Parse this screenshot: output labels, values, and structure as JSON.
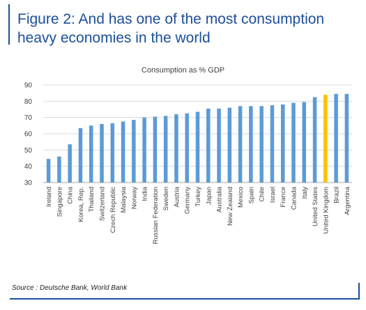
{
  "figure": {
    "title": "Figure 2: And has one of the most consumption heavy economies in the world",
    "source": "Source : Deutsche Bank, World Bank"
  },
  "colors": {
    "bar": "#5b9bd5",
    "highlight": "#ffc000",
    "frame": "#1a4f9c",
    "grid": "#d9d9d9"
  },
  "chart_data": {
    "type": "bar",
    "title": "Consumption as % GDP",
    "xlabel": "",
    "ylabel": "",
    "ylim": [
      30,
      90
    ],
    "yticks": [
      30,
      40,
      50,
      60,
      70,
      80,
      90
    ],
    "grid": true,
    "legend": "none",
    "highlight_category": "United Kingdom",
    "categories": [
      "Ireland",
      "Singapore",
      "China",
      "Korea, Rep.",
      "Thailand",
      "Switzerland",
      "Czech Republic",
      "Malaysia",
      "Norway",
      "India",
      "Russian Federation",
      "Sweden",
      "Austria",
      "Germany",
      "Turkey",
      "Japan",
      "Australia",
      "New Zealand",
      "Mexico",
      "Spain",
      "Chile",
      "Israel",
      "France",
      "Canada",
      "Italy",
      "United States",
      "United Kingdom",
      "Brazil",
      "Argentina"
    ],
    "values": [
      44.5,
      46,
      53.5,
      63.5,
      65,
      66,
      66.5,
      67.5,
      68.5,
      70,
      70.5,
      71,
      72,
      72.5,
      73.5,
      75.5,
      75.5,
      76,
      77,
      77,
      77,
      77.5,
      78,
      79,
      79.5,
      82.5,
      84,
      84.5,
      84.5
    ]
  }
}
